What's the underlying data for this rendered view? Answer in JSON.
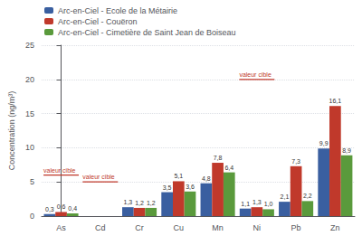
{
  "chart_data": {
    "type": "bar",
    "ylabel": "Concentration (ng/m³)",
    "categories": [
      "As",
      "Cd",
      "Cr",
      "Cu",
      "Mn",
      "Ni",
      "Pb",
      "Zn"
    ],
    "series": [
      {
        "name": "Arc-en-Ciel - Ecole de la Métairie",
        "color": "#3a5fa0",
        "values": [
          0.3,
          0.0,
          1.3,
          3.5,
          4.8,
          1.1,
          2.1,
          9.9
        ],
        "value_labels": [
          "0,3",
          null,
          "1,3",
          "3,5",
          "4,8",
          "1,1",
          "2,1",
          "9,9"
        ]
      },
      {
        "name": "Arc-en-Ciel - Couëron",
        "color": "#c0392b",
        "values": [
          0.6,
          0.0,
          1.2,
          5.1,
          7.8,
          1.3,
          7.3,
          16.1
        ],
        "value_labels": [
          "0,6",
          null,
          "1,2",
          "5,1",
          "7,8",
          "1,3",
          "7,3",
          "16,1"
        ]
      },
      {
        "name": "Arc-en-Ciel - Cimetière de Saint Jean de Boiseau",
        "color": "#5a9a3c",
        "values": [
          0.4,
          0.0,
          1.2,
          3.6,
          6.4,
          1.0,
          2.2,
          8.9
        ],
        "value_labels": [
          "0,4",
          null,
          "1,2",
          "3,6",
          "6,4",
          "1,0",
          "2,2",
          "8,9"
        ]
      }
    ],
    "ylim": [
      0,
      25
    ],
    "yticks": [
      0,
      5,
      10,
      15,
      20,
      25
    ],
    "grid": true,
    "legend": "upper left",
    "data_labels": true,
    "annotations": [
      {
        "text": "valeur cible",
        "category": "As",
        "y": 6,
        "color": "#c0392b"
      },
      {
        "text": "valeur cible",
        "category": "Cd",
        "y": 5,
        "color": "#c0392b"
      },
      {
        "text": "valeur cible",
        "category": "Ni",
        "y": 20,
        "color": "#c0392b"
      }
    ]
  }
}
